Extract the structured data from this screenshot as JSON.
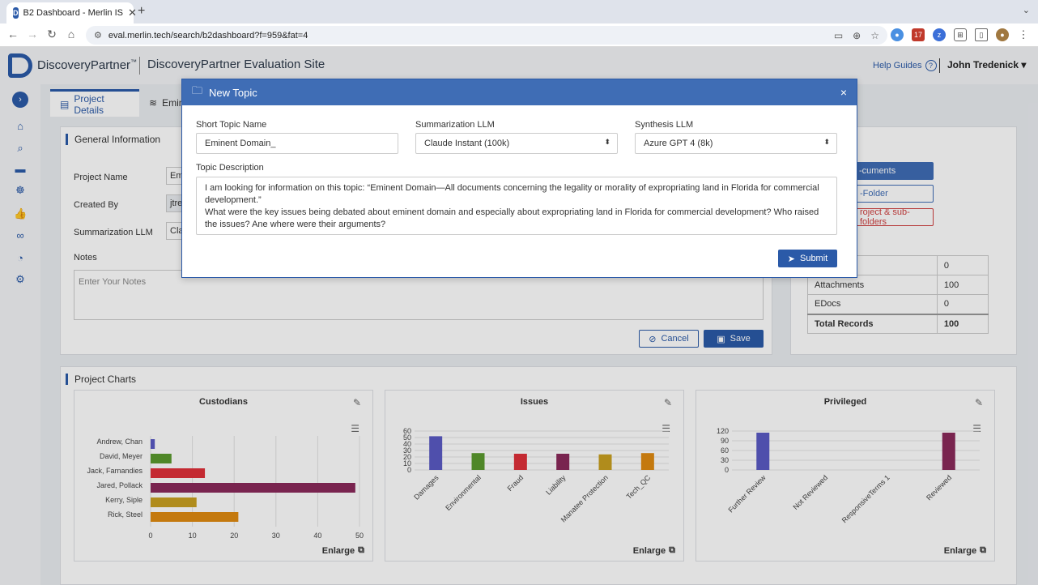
{
  "browser": {
    "tab_title": "B2 Dashboard - Merlin IS",
    "url": "eval.merlin.tech/search/b2dashboard?f=959&fat=4",
    "ext_badge": "17"
  },
  "header": {
    "logo_text": "DiscoveryPartner",
    "logo_tm": "™",
    "site_title": "DiscoveryPartner Evaluation Site",
    "help_label": "Help Guides",
    "user_name": "John Tredenick ▾"
  },
  "tabs": {
    "project_details": "Project Details",
    "second_tab": "Emin"
  },
  "general_info": {
    "title": "General Information",
    "project_name_label": "Project Name",
    "project_name_value": "Em",
    "created_by_label": "Created By",
    "created_by_value": "jtre",
    "summ_llm_label": "Summarization LLM",
    "summ_llm_value": "Cla",
    "notes_label": "Notes",
    "notes_placeholder": "Enter Your Notes",
    "cancel_label": "Cancel",
    "save_label": "Save"
  },
  "side_panel": {
    "title": "ns",
    "btn_documents": "-cuments",
    "btn_folder": "-Folder",
    "btn_delete": "roject & sub-folders",
    "records": [
      {
        "label": "",
        "value": "0"
      },
      {
        "label": "Attachments",
        "value": "100"
      },
      {
        "label": "EDocs",
        "value": "0"
      }
    ],
    "total_label": "Total Records",
    "total_value": "100"
  },
  "charts_section": {
    "title": "Project Charts",
    "enlarge_label": "Enlarge"
  },
  "chart_data": [
    {
      "type": "bar",
      "orientation": "horizontal",
      "title": "Custodians",
      "categories": [
        "Andrew, Chan",
        "David, Meyer",
        "Jack, Farnandies",
        "Jared, Pollack",
        "Kerry, Siple",
        "Rick, Steel"
      ],
      "values": [
        1,
        5,
        13,
        49,
        11,
        21
      ],
      "colors": [
        "#5b5bc4",
        "#5a9a2e",
        "#e0303a",
        "#8a2a5a",
        "#c9a020",
        "#e08a10"
      ],
      "xlim": [
        0,
        50
      ],
      "xticks": [
        0,
        10,
        20,
        30,
        40,
        50
      ]
    },
    {
      "type": "bar",
      "title": "Issues",
      "categories": [
        "Damages",
        "Environmental",
        "Fraud",
        "Liability",
        "Manatee Protection",
        "Tech_QC"
      ],
      "values": [
        52,
        26,
        25,
        25,
        24,
        26
      ],
      "colors": [
        "#5b5bc4",
        "#5a9a2e",
        "#e0303a",
        "#8a2a5a",
        "#c9a020",
        "#e08a10"
      ],
      "ylim": [
        0,
        60
      ],
      "yticks": [
        0,
        10,
        20,
        30,
        40,
        50,
        60
      ]
    },
    {
      "type": "bar",
      "title": "Privileged",
      "categories": [
        "Further Review",
        "Not Reviewed",
        "ResponsiveTerms 1",
        "Reviewed"
      ],
      "values": [
        115,
        0,
        0,
        115
      ],
      "colors": [
        "#5b5bc4",
        "#5a9a2e",
        "#e0303a",
        "#8a2a5a"
      ],
      "ylim": [
        0,
        120
      ],
      "yticks": [
        0,
        30,
        60,
        90,
        120
      ]
    }
  ],
  "modal": {
    "title": "New Topic",
    "close": "×",
    "short_name_label": "Short Topic Name",
    "short_name_value": "Eminent Domain_",
    "summ_llm_label": "Summarization LLM",
    "summ_llm_value": "Claude Instant (100k)",
    "synth_llm_label": "Synthesis LLM",
    "synth_llm_value": "Azure GPT 4 (8k)",
    "description_label": "Topic Description",
    "description_line1": "I am looking for information on this topic: “Eminent Domain—All documents concerning the legality or morality of expropriating land in Florida for commercial development.”",
    "description_line2": "What were the key issues being debated about eminent domain and especially about expropriating land in Florida for commercial development? Who raised the issues? Ane where were their arguments?",
    "submit_label": "Submit"
  }
}
